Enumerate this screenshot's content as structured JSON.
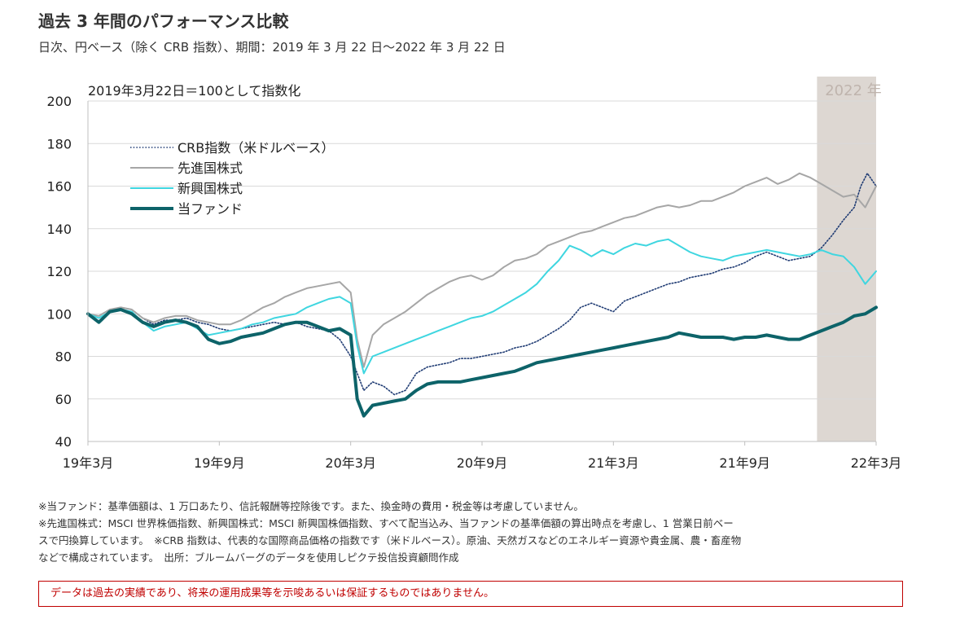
{
  "title": "過去 3 年間のパフォーマンス比較",
  "subtitle": "日次、円ベース（除く CRB 指数）、期間：2019 年 3 月 22 日～2022 年 3 月 22 日",
  "chart_data": {
    "type": "line",
    "base_note": "2019年3月22日＝100として指数化",
    "highlight_label": "2022 年",
    "highlight_color": "#ddd7d2",
    "x_tick_labels": [
      "19年3月",
      "19年9月",
      "20年3月",
      "20年9月",
      "21年3月",
      "21年9月",
      "22年3月"
    ],
    "x_tick_positions_month": [
      0,
      6,
      12,
      18,
      24,
      30,
      36
    ],
    "highlight_range_month": [
      33.3,
      36.0
    ],
    "ylim": [
      40,
      200
    ],
    "yticks": [
      40,
      60,
      80,
      100,
      120,
      140,
      160,
      180,
      200
    ],
    "grid": true,
    "legend_position": "top-left",
    "x_unit": "months since 2019-03",
    "series": [
      {
        "name": "CRB指数（米ドルベース）",
        "color": "#1f3b73",
        "style": "dotted",
        "x": [
          0,
          0.5,
          1,
          1.5,
          2,
          2.5,
          3,
          3.5,
          4,
          4.5,
          5,
          5.5,
          6,
          6.5,
          7,
          7.5,
          8,
          8.5,
          9,
          9.5,
          10,
          10.5,
          11,
          11.5,
          12,
          12.3,
          12.6,
          13,
          13.5,
          14,
          14.5,
          15,
          15.5,
          16,
          16.5,
          17,
          17.5,
          18,
          18.5,
          19,
          19.5,
          20,
          20.5,
          21,
          21.5,
          22,
          22.5,
          23,
          23.5,
          24,
          24.5,
          25,
          25.5,
          26,
          26.5,
          27,
          27.5,
          28,
          28.5,
          29,
          29.5,
          30,
          30.5,
          31,
          31.5,
          32,
          32.5,
          33,
          33.5,
          34,
          34.5,
          35,
          35.3,
          35.6,
          36
        ],
        "values": [
          100,
          98,
          101,
          103,
          102,
          98,
          95,
          97,
          97,
          98,
          96,
          95,
          93,
          92,
          93,
          94,
          95,
          96,
          95,
          96,
          94,
          93,
          92,
          88,
          80,
          72,
          64,
          68,
          66,
          62,
          64,
          72,
          75,
          76,
          77,
          79,
          79,
          80,
          81,
          82,
          84,
          85,
          87,
          90,
          93,
          97,
          103,
          105,
          103,
          101,
          106,
          108,
          110,
          112,
          114,
          115,
          117,
          118,
          119,
          121,
          122,
          124,
          127,
          129,
          127,
          125,
          126,
          127,
          131,
          137,
          144,
          150,
          160,
          166,
          160
        ]
      },
      {
        "name": "先進国株式",
        "color": "#a6a6a6",
        "style": "solid",
        "x": [
          0,
          0.5,
          1,
          1.5,
          2,
          2.5,
          3,
          3.5,
          4,
          4.5,
          5,
          5.5,
          6,
          6.5,
          7,
          7.5,
          8,
          8.5,
          9,
          9.5,
          10,
          10.5,
          11,
          11.5,
          12,
          12.3,
          12.6,
          13,
          13.5,
          14,
          14.5,
          15,
          15.5,
          16,
          16.5,
          17,
          17.5,
          18,
          18.5,
          19,
          19.5,
          20,
          20.5,
          21,
          21.5,
          22,
          22.5,
          23,
          23.5,
          24,
          24.5,
          25,
          25.5,
          26,
          26.5,
          27,
          27.5,
          28,
          28.5,
          29,
          29.5,
          30,
          30.5,
          31,
          31.5,
          32,
          32.5,
          33,
          33.5,
          34,
          34.5,
          35,
          35.5,
          36
        ],
        "values": [
          100,
          99,
          102,
          103,
          102,
          98,
          96,
          98,
          99,
          99,
          97,
          96,
          95,
          95,
          97,
          100,
          103,
          105,
          108,
          110,
          112,
          113,
          114,
          115,
          110,
          88,
          75,
          90,
          95,
          98,
          101,
          105,
          109,
          112,
          115,
          117,
          118,
          116,
          118,
          122,
          125,
          126,
          128,
          132,
          134,
          136,
          138,
          139,
          141,
          143,
          145,
          146,
          148,
          150,
          151,
          150,
          151,
          153,
          153,
          155,
          157,
          160,
          162,
          164,
          161,
          163,
          166,
          164,
          161,
          158,
          155,
          156,
          150,
          160
        ]
      },
      {
        "name": "新興国株式",
        "color": "#3fd6e0",
        "style": "solid",
        "x": [
          0,
          0.5,
          1,
          1.5,
          2,
          2.5,
          3,
          3.5,
          4,
          4.5,
          5,
          5.5,
          6,
          6.5,
          7,
          7.5,
          8,
          8.5,
          9,
          9.5,
          10,
          10.5,
          11,
          11.5,
          12,
          12.3,
          12.6,
          13,
          13.5,
          14,
          14.5,
          15,
          15.5,
          16,
          16.5,
          17,
          17.5,
          18,
          18.5,
          19,
          19.5,
          20,
          20.5,
          21,
          21.5,
          22,
          22.5,
          23,
          23.5,
          24,
          24.5,
          25,
          25.5,
          26,
          26.5,
          27,
          27.5,
          28,
          28.5,
          29,
          29.5,
          30,
          30.5,
          31,
          31.5,
          32,
          32.5,
          33,
          33.5,
          34,
          34.5,
          35,
          35.5,
          36
        ],
        "values": [
          100,
          98,
          101,
          102,
          101,
          96,
          92,
          94,
          95,
          96,
          93,
          90,
          91,
          92,
          93,
          95,
          96,
          98,
          99,
          100,
          103,
          105,
          107,
          108,
          105,
          85,
          72,
          80,
          82,
          84,
          86,
          88,
          90,
          92,
          94,
          96,
          98,
          99,
          101,
          104,
          107,
          110,
          114,
          120,
          125,
          132,
          130,
          127,
          130,
          128,
          131,
          133,
          132,
          134,
          135,
          132,
          129,
          127,
          126,
          125,
          127,
          128,
          129,
          130,
          129,
          128,
          127,
          128,
          130,
          128,
          127,
          122,
          114,
          120
        ]
      },
      {
        "name": "当ファンド",
        "color": "#0d6369",
        "style": "thick",
        "x": [
          0,
          0.5,
          1,
          1.5,
          2,
          2.5,
          3,
          3.5,
          4,
          4.5,
          5,
          5.5,
          6,
          6.5,
          7,
          7.5,
          8,
          8.5,
          9,
          9.5,
          10,
          10.5,
          11,
          11.5,
          12,
          12.3,
          12.6,
          13,
          13.5,
          14,
          14.5,
          15,
          15.5,
          16,
          16.5,
          17,
          17.5,
          18,
          18.5,
          19,
          19.5,
          20,
          20.5,
          21,
          21.5,
          22,
          22.5,
          23,
          23.5,
          24,
          24.5,
          25,
          25.5,
          26,
          26.5,
          27,
          27.5,
          28,
          28.5,
          29,
          29.5,
          30,
          30.5,
          31,
          31.5,
          32,
          32.5,
          33,
          33.5,
          34,
          34.5,
          35,
          35.5,
          36
        ],
        "values": [
          100,
          96,
          101,
          102,
          100,
          96,
          94,
          96,
          97,
          96,
          94,
          88,
          86,
          87,
          89,
          90,
          91,
          93,
          95,
          96,
          96,
          94,
          92,
          93,
          90,
          60,
          52,
          57,
          58,
          59,
          60,
          64,
          67,
          68,
          68,
          68,
          69,
          70,
          71,
          72,
          73,
          75,
          77,
          78,
          79,
          80,
          81,
          82,
          83,
          84,
          85,
          86,
          87,
          88,
          89,
          91,
          90,
          89,
          89,
          89,
          88,
          89,
          89,
          90,
          89,
          88,
          88,
          90,
          92,
          94,
          96,
          99,
          100,
          103
        ]
      }
    ]
  },
  "notes": [
    "※当ファンド：基準価額は、1 万口あたり、信託報酬等控除後です。また、換金時の費用・税金等は考慮していません。",
    "※先進国株式：MSCI 世界株価指数、新興国株式：MSCI 新興国株価指数、すべて配当込み、当ファンドの基準価額の算出時点を考慮し、1 営業日前ベー",
    "スで円換算しています。　※CRB 指数は、代表的な国際商品価格の指数です（米ドルベース）。原油、天然ガスなどのエネルギー資源や貴金属、農・畜産物",
    "などで構成されています。　出所：ブルームバーグのデータを使用しピクテ投信投資顧問作成"
  ],
  "disclaimer": "データは過去の実績であり、将来の運用成果等を示唆あるいは保証するものではありません。"
}
